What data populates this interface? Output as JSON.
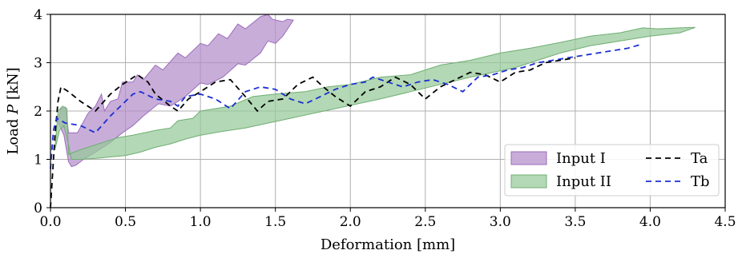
{
  "chart_data": {
    "type": "area",
    "xlabel": "Deformation [mm]",
    "ylabel_prefix": "Load ",
    "ylabel_var": "P",
    "ylabel_suffix": " [kN]",
    "xlim": [
      0,
      4.5
    ],
    "ylim": [
      0,
      4
    ],
    "x_ticks": [
      0,
      0.5,
      1,
      1.5,
      2,
      2.5,
      3,
      3.5,
      4,
      4.5
    ],
    "x_tick_labels": [
      "0.0",
      "0.5",
      "1.0",
      "1.5",
      "2.0",
      "2.5",
      "3.0",
      "3.5",
      "4.0",
      "4.5"
    ],
    "y_ticks": [
      0,
      1,
      2,
      3,
      4
    ],
    "y_tick_labels": [
      "0",
      "1",
      "2",
      "3",
      "4"
    ],
    "grid": true,
    "legend_position": "lower-right",
    "bands": [
      {
        "name": "Input I",
        "fill": "#b38ecb",
        "edge": "#9b6dbb",
        "upper": [
          [
            0.05,
            1.8
          ],
          [
            0.07,
            2.05
          ],
          [
            0.1,
            2.08
          ],
          [
            0.12,
            1.55
          ],
          [
            0.18,
            1.55
          ],
          [
            0.25,
            1.95
          ],
          [
            0.3,
            2.1
          ],
          [
            0.34,
            2.35
          ],
          [
            0.36,
            2.0
          ],
          [
            0.4,
            2.2
          ],
          [
            0.45,
            2.25
          ],
          [
            0.48,
            2.6
          ],
          [
            0.55,
            2.6
          ],
          [
            0.58,
            2.75
          ],
          [
            0.62,
            2.65
          ],
          [
            0.7,
            2.95
          ],
          [
            0.75,
            2.85
          ],
          [
            0.85,
            3.2
          ],
          [
            0.9,
            3.1
          ],
          [
            1.0,
            3.4
          ],
          [
            1.05,
            3.35
          ],
          [
            1.12,
            3.6
          ],
          [
            1.18,
            3.5
          ],
          [
            1.25,
            3.8
          ],
          [
            1.3,
            3.7
          ],
          [
            1.4,
            3.95
          ],
          [
            1.45,
            4.0
          ],
          [
            1.48,
            3.9
          ],
          [
            1.55,
            3.85
          ],
          [
            1.58,
            3.9
          ],
          [
            1.62,
            3.88
          ]
        ],
        "lower": [
          [
            1.62,
            3.88
          ],
          [
            1.55,
            3.55
          ],
          [
            1.5,
            3.4
          ],
          [
            1.45,
            3.45
          ],
          [
            1.4,
            3.2
          ],
          [
            1.3,
            2.95
          ],
          [
            1.25,
            2.98
          ],
          [
            1.15,
            2.7
          ],
          [
            1.05,
            2.55
          ],
          [
            1.0,
            2.58
          ],
          [
            0.9,
            2.3
          ],
          [
            0.8,
            2.1
          ],
          [
            0.72,
            2.15
          ],
          [
            0.62,
            1.9
          ],
          [
            0.55,
            1.7
          ],
          [
            0.48,
            1.55
          ],
          [
            0.4,
            1.35
          ],
          [
            0.3,
            1.15
          ],
          [
            0.22,
            1.0
          ],
          [
            0.17,
            0.88
          ],
          [
            0.14,
            0.85
          ],
          [
            0.12,
            0.95
          ],
          [
            0.09,
            1.5
          ],
          [
            0.06,
            1.7
          ],
          [
            0.05,
            1.8
          ]
        ]
      },
      {
        "name": "Input II",
        "fill": "#96c999",
        "edge": "#6fae73",
        "upper": [
          [
            0.03,
            1.2
          ],
          [
            0.05,
            2.0
          ],
          [
            0.08,
            2.1
          ],
          [
            0.11,
            2.05
          ],
          [
            0.12,
            1.1
          ],
          [
            0.2,
            1.2
          ],
          [
            0.35,
            1.35
          ],
          [
            0.45,
            1.45
          ],
          [
            0.55,
            1.5
          ],
          [
            0.7,
            1.6
          ],
          [
            0.8,
            1.65
          ],
          [
            0.85,
            1.8
          ],
          [
            0.95,
            1.85
          ],
          [
            1.0,
            2.0
          ],
          [
            1.1,
            2.05
          ],
          [
            1.2,
            2.1
          ],
          [
            1.35,
            2.3
          ],
          [
            1.5,
            2.35
          ],
          [
            1.7,
            2.4
          ],
          [
            1.85,
            2.5
          ],
          [
            2.0,
            2.55
          ],
          [
            2.2,
            2.7
          ],
          [
            2.4,
            2.75
          ],
          [
            2.6,
            2.95
          ],
          [
            2.8,
            3.05
          ],
          [
            3.0,
            3.2
          ],
          [
            3.2,
            3.3
          ],
          [
            3.4,
            3.42
          ],
          [
            3.6,
            3.55
          ],
          [
            3.8,
            3.62
          ],
          [
            3.95,
            3.72
          ],
          [
            4.05,
            3.7
          ],
          [
            4.2,
            3.72
          ],
          [
            4.3,
            3.73
          ]
        ],
        "lower": [
          [
            4.3,
            3.73
          ],
          [
            4.2,
            3.62
          ],
          [
            4.0,
            3.55
          ],
          [
            3.8,
            3.45
          ],
          [
            3.6,
            3.35
          ],
          [
            3.4,
            3.2
          ],
          [
            3.25,
            3.05
          ],
          [
            3.1,
            2.9
          ],
          [
            2.95,
            2.8
          ],
          [
            2.8,
            2.7
          ],
          [
            2.6,
            2.55
          ],
          [
            2.4,
            2.4
          ],
          [
            2.2,
            2.25
          ],
          [
            2.05,
            2.15
          ],
          [
            1.9,
            2.05
          ],
          [
            1.75,
            1.95
          ],
          [
            1.6,
            1.85
          ],
          [
            1.45,
            1.75
          ],
          [
            1.3,
            1.65
          ],
          [
            1.15,
            1.58
          ],
          [
            1.0,
            1.5
          ],
          [
            0.9,
            1.42
          ],
          [
            0.8,
            1.32
          ],
          [
            0.7,
            1.25
          ],
          [
            0.6,
            1.15
          ],
          [
            0.5,
            1.08
          ],
          [
            0.4,
            1.05
          ],
          [
            0.3,
            1.02
          ],
          [
            0.2,
            1.0
          ],
          [
            0.14,
            1.0
          ],
          [
            0.12,
            1.3
          ],
          [
            0.09,
            1.7
          ],
          [
            0.06,
            1.6
          ],
          [
            0.03,
            1.2
          ]
        ]
      }
    ],
    "series": [
      {
        "name": "Ta",
        "color": "#000000",
        "dash": "7,5",
        "points": [
          [
            0,
            0
          ],
          [
            0.03,
            1.5
          ],
          [
            0.05,
            2.2
          ],
          [
            0.07,
            2.5
          ],
          [
            0.12,
            2.4
          ],
          [
            0.2,
            2.2
          ],
          [
            0.3,
            2.0
          ],
          [
            0.4,
            2.35
          ],
          [
            0.48,
            2.55
          ],
          [
            0.58,
            2.75
          ],
          [
            0.65,
            2.6
          ],
          [
            0.7,
            2.35
          ],
          [
            0.8,
            2.1
          ],
          [
            0.85,
            2.0
          ],
          [
            0.92,
            2.25
          ],
          [
            1.0,
            2.4
          ],
          [
            1.1,
            2.6
          ],
          [
            1.2,
            2.65
          ],
          [
            1.3,
            2.3
          ],
          [
            1.38,
            2.0
          ],
          [
            1.45,
            2.2
          ],
          [
            1.55,
            2.25
          ],
          [
            1.65,
            2.55
          ],
          [
            1.75,
            2.7
          ],
          [
            1.82,
            2.5
          ],
          [
            1.9,
            2.3
          ],
          [
            2.0,
            2.1
          ],
          [
            2.1,
            2.4
          ],
          [
            2.2,
            2.5
          ],
          [
            2.3,
            2.7
          ],
          [
            2.4,
            2.55
          ],
          [
            2.5,
            2.25
          ],
          [
            2.6,
            2.5
          ],
          [
            2.7,
            2.65
          ],
          [
            2.8,
            2.8
          ],
          [
            2.9,
            2.75
          ],
          [
            3.0,
            2.6
          ],
          [
            3.1,
            2.8
          ],
          [
            3.2,
            2.85
          ],
          [
            3.3,
            3.0
          ],
          [
            3.4,
            3.05
          ],
          [
            3.5,
            3.1
          ]
        ]
      },
      {
        "name": "Tb",
        "color": "#1a2fd1",
        "dash": "7,5",
        "points": [
          [
            0,
            0.8
          ],
          [
            0.02,
            1.6
          ],
          [
            0.04,
            1.85
          ],
          [
            0.1,
            1.75
          ],
          [
            0.2,
            1.7
          ],
          [
            0.3,
            1.55
          ],
          [
            0.4,
            1.9
          ],
          [
            0.5,
            2.2
          ],
          [
            0.55,
            2.35
          ],
          [
            0.6,
            2.4
          ],
          [
            0.7,
            2.25
          ],
          [
            0.8,
            2.2
          ],
          [
            0.85,
            2.1
          ],
          [
            0.9,
            2.3
          ],
          [
            1.0,
            2.35
          ],
          [
            1.1,
            2.25
          ],
          [
            1.2,
            2.05
          ],
          [
            1.3,
            2.4
          ],
          [
            1.4,
            2.5
          ],
          [
            1.5,
            2.45
          ],
          [
            1.6,
            2.25
          ],
          [
            1.7,
            2.15
          ],
          [
            1.8,
            2.3
          ],
          [
            1.9,
            2.45
          ],
          [
            2.0,
            2.55
          ],
          [
            2.1,
            2.6
          ],
          [
            2.15,
            2.7
          ],
          [
            2.25,
            2.6
          ],
          [
            2.35,
            2.5
          ],
          [
            2.45,
            2.6
          ],
          [
            2.55,
            2.65
          ],
          [
            2.65,
            2.55
          ],
          [
            2.75,
            2.4
          ],
          [
            2.85,
            2.7
          ],
          [
            2.95,
            2.75
          ],
          [
            3.05,
            2.85
          ],
          [
            3.15,
            2.9
          ],
          [
            3.25,
            3.0
          ],
          [
            3.35,
            3.05
          ],
          [
            3.45,
            3.1
          ],
          [
            3.55,
            3.15
          ],
          [
            3.65,
            3.2
          ],
          [
            3.75,
            3.25
          ],
          [
            3.85,
            3.3
          ],
          [
            3.93,
            3.37
          ]
        ]
      }
    ],
    "legend": {
      "entries": [
        "Input I",
        "Input II",
        "Ta",
        "Tb"
      ]
    }
  }
}
